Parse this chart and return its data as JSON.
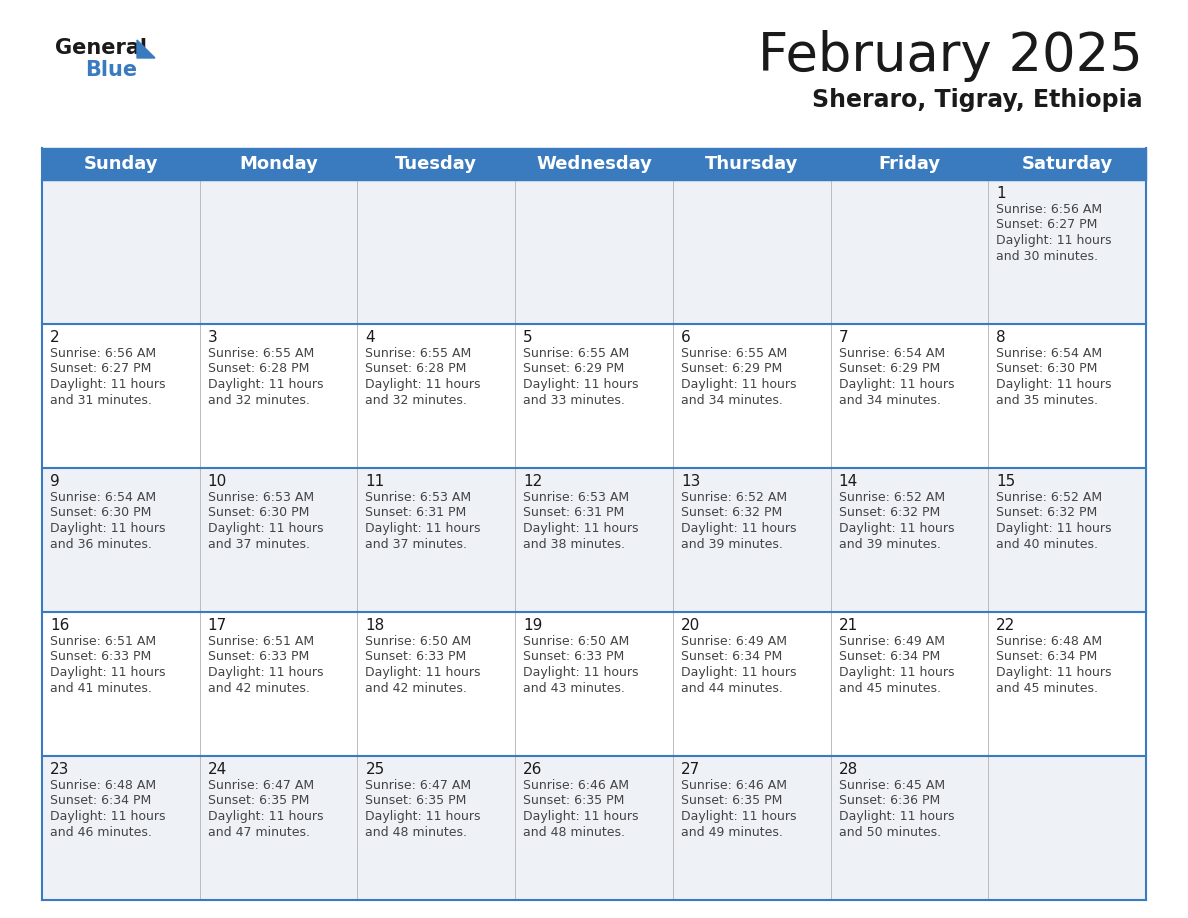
{
  "title": "February 2025",
  "subtitle": "Sheraro, Tigray, Ethiopia",
  "header_color": "#3a7bbf",
  "header_text_color": "#ffffff",
  "cell_bg_even": "#eef2f7",
  "cell_bg_odd": "#ffffff",
  "border_color": "#3a7bbf",
  "day_headers": [
    "Sunday",
    "Monday",
    "Tuesday",
    "Wednesday",
    "Thursday",
    "Friday",
    "Saturday"
  ],
  "title_fontsize": 38,
  "subtitle_fontsize": 17,
  "header_fontsize": 13,
  "day_num_fontsize": 11,
  "info_fontsize": 9,
  "calendar_data": [
    [
      null,
      null,
      null,
      null,
      null,
      null,
      {
        "day": 1,
        "sunrise": "6:56 AM",
        "sunset": "6:27 PM",
        "daylight_h": "11 hours",
        "daylight_m": "30 minutes."
      }
    ],
    [
      {
        "day": 2,
        "sunrise": "6:56 AM",
        "sunset": "6:27 PM",
        "daylight_h": "11 hours",
        "daylight_m": "31 minutes."
      },
      {
        "day": 3,
        "sunrise": "6:55 AM",
        "sunset": "6:28 PM",
        "daylight_h": "11 hours",
        "daylight_m": "32 minutes."
      },
      {
        "day": 4,
        "sunrise": "6:55 AM",
        "sunset": "6:28 PM",
        "daylight_h": "11 hours",
        "daylight_m": "32 minutes."
      },
      {
        "day": 5,
        "sunrise": "6:55 AM",
        "sunset": "6:29 PM",
        "daylight_h": "11 hours",
        "daylight_m": "33 minutes."
      },
      {
        "day": 6,
        "sunrise": "6:55 AM",
        "sunset": "6:29 PM",
        "daylight_h": "11 hours",
        "daylight_m": "34 minutes."
      },
      {
        "day": 7,
        "sunrise": "6:54 AM",
        "sunset": "6:29 PM",
        "daylight_h": "11 hours",
        "daylight_m": "34 minutes."
      },
      {
        "day": 8,
        "sunrise": "6:54 AM",
        "sunset": "6:30 PM",
        "daylight_h": "11 hours",
        "daylight_m": "35 minutes."
      }
    ],
    [
      {
        "day": 9,
        "sunrise": "6:54 AM",
        "sunset": "6:30 PM",
        "daylight_h": "11 hours",
        "daylight_m": "36 minutes."
      },
      {
        "day": 10,
        "sunrise": "6:53 AM",
        "sunset": "6:30 PM",
        "daylight_h": "11 hours",
        "daylight_m": "37 minutes."
      },
      {
        "day": 11,
        "sunrise": "6:53 AM",
        "sunset": "6:31 PM",
        "daylight_h": "11 hours",
        "daylight_m": "37 minutes."
      },
      {
        "day": 12,
        "sunrise": "6:53 AM",
        "sunset": "6:31 PM",
        "daylight_h": "11 hours",
        "daylight_m": "38 minutes."
      },
      {
        "day": 13,
        "sunrise": "6:52 AM",
        "sunset": "6:32 PM",
        "daylight_h": "11 hours",
        "daylight_m": "39 minutes."
      },
      {
        "day": 14,
        "sunrise": "6:52 AM",
        "sunset": "6:32 PM",
        "daylight_h": "11 hours",
        "daylight_m": "39 minutes."
      },
      {
        "day": 15,
        "sunrise": "6:52 AM",
        "sunset": "6:32 PM",
        "daylight_h": "11 hours",
        "daylight_m": "40 minutes."
      }
    ],
    [
      {
        "day": 16,
        "sunrise": "6:51 AM",
        "sunset": "6:33 PM",
        "daylight_h": "11 hours",
        "daylight_m": "41 minutes."
      },
      {
        "day": 17,
        "sunrise": "6:51 AM",
        "sunset": "6:33 PM",
        "daylight_h": "11 hours",
        "daylight_m": "42 minutes."
      },
      {
        "day": 18,
        "sunrise": "6:50 AM",
        "sunset": "6:33 PM",
        "daylight_h": "11 hours",
        "daylight_m": "42 minutes."
      },
      {
        "day": 19,
        "sunrise": "6:50 AM",
        "sunset": "6:33 PM",
        "daylight_h": "11 hours",
        "daylight_m": "43 minutes."
      },
      {
        "day": 20,
        "sunrise": "6:49 AM",
        "sunset": "6:34 PM",
        "daylight_h": "11 hours",
        "daylight_m": "44 minutes."
      },
      {
        "day": 21,
        "sunrise": "6:49 AM",
        "sunset": "6:34 PM",
        "daylight_h": "11 hours",
        "daylight_m": "45 minutes."
      },
      {
        "day": 22,
        "sunrise": "6:48 AM",
        "sunset": "6:34 PM",
        "daylight_h": "11 hours",
        "daylight_m": "45 minutes."
      }
    ],
    [
      {
        "day": 23,
        "sunrise": "6:48 AM",
        "sunset": "6:34 PM",
        "daylight_h": "11 hours",
        "daylight_m": "46 minutes."
      },
      {
        "day": 24,
        "sunrise": "6:47 AM",
        "sunset": "6:35 PM",
        "daylight_h": "11 hours",
        "daylight_m": "47 minutes."
      },
      {
        "day": 25,
        "sunrise": "6:47 AM",
        "sunset": "6:35 PM",
        "daylight_h": "11 hours",
        "daylight_m": "48 minutes."
      },
      {
        "day": 26,
        "sunrise": "6:46 AM",
        "sunset": "6:35 PM",
        "daylight_h": "11 hours",
        "daylight_m": "48 minutes."
      },
      {
        "day": 27,
        "sunrise": "6:46 AM",
        "sunset": "6:35 PM",
        "daylight_h": "11 hours",
        "daylight_m": "49 minutes."
      },
      {
        "day": 28,
        "sunrise": "6:45 AM",
        "sunset": "6:36 PM",
        "daylight_h": "11 hours",
        "daylight_m": "50 minutes."
      },
      null
    ]
  ]
}
